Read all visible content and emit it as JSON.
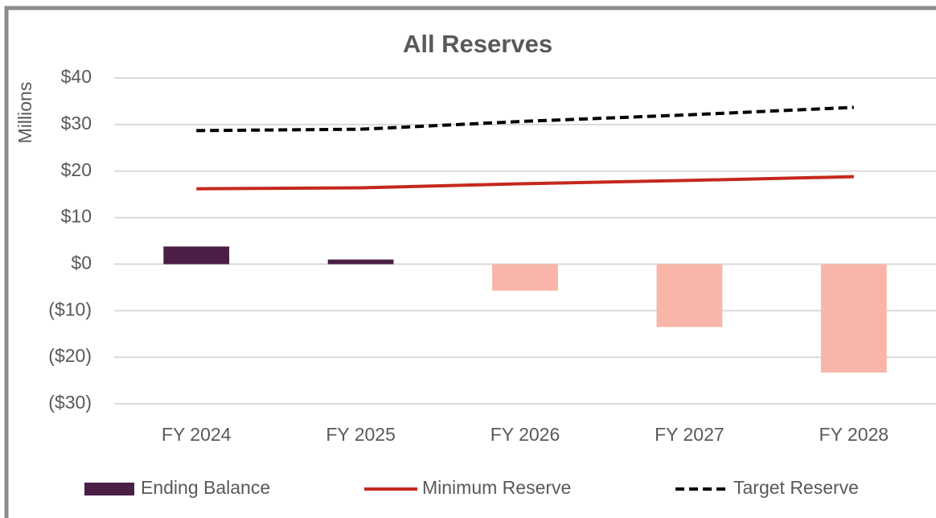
{
  "chart_data": {
    "type": "combo",
    "title": "All Reserves",
    "y_label": "Millions",
    "categories": [
      "FY 2024",
      "FY 2025",
      "FY 2026",
      "FY 2027",
      "FY 2028"
    ],
    "series": [
      {
        "name": "Ending Balance",
        "type": "bar",
        "color": "#4b1f45",
        "negative_color": "#f8b5a8",
        "values": [
          3.8,
          1.0,
          -5.7,
          -13.5,
          -23.3
        ]
      },
      {
        "name": "Minimum Reserve",
        "type": "line",
        "color": "#c5281c",
        "dashed": false,
        "values": [
          16.2,
          16.4,
          17.3,
          18.0,
          18.8
        ]
      },
      {
        "name": "Target Reserve",
        "type": "line",
        "color": "#000000",
        "dashed": true,
        "values": [
          28.7,
          29.0,
          30.7,
          32.1,
          33.7
        ]
      }
    ],
    "ylim": [
      -30,
      40
    ],
    "yticks": [
      {
        "value": -30,
        "label": "($30)"
      },
      {
        "value": -20,
        "label": "($20)"
      },
      {
        "value": -10,
        "label": "($10)"
      },
      {
        "value": 0,
        "label": "$0"
      },
      {
        "value": 10,
        "label": "$10"
      },
      {
        "value": 20,
        "label": "$20"
      },
      {
        "value": 30,
        "label": "$30"
      },
      {
        "value": 40,
        "label": "$40"
      }
    ],
    "grid": true,
    "legend": "bottom"
  }
}
